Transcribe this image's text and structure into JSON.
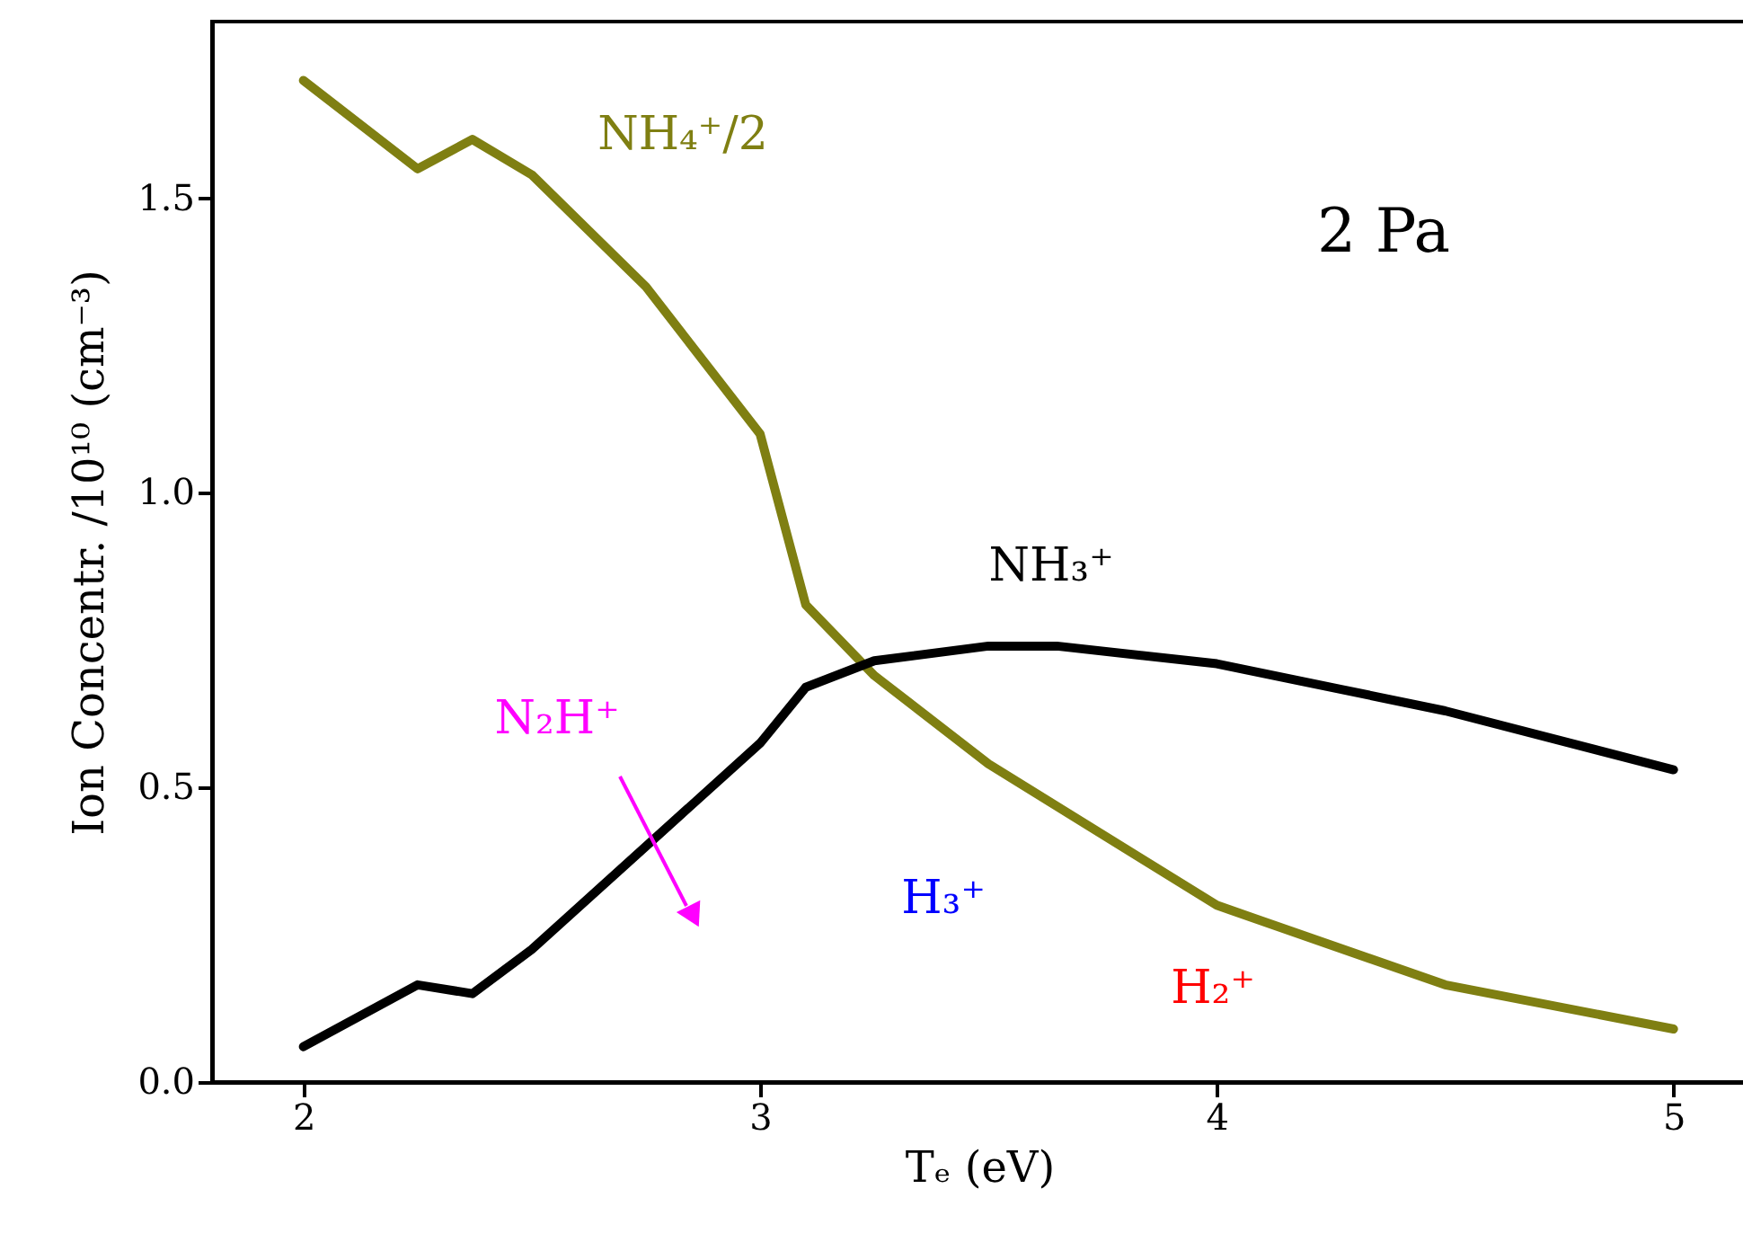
{
  "chart_data": {
    "type": "line",
    "xlabel": "Tₑ (eV)",
    "ylabel": "Ion Concentr. /10¹⁰ (cm⁻³)",
    "xlim": [
      1.8,
      5.16
    ],
    "ylim": [
      0,
      1.8
    ],
    "xticks": [
      2,
      3,
      4,
      5
    ],
    "yticks": [
      {
        "value": 0,
        "label": "0.0"
      },
      {
        "value": 0.5,
        "label": "0.5"
      },
      {
        "value": 1,
        "label": "1.0"
      },
      {
        "value": 1.5,
        "label": "1.5"
      }
    ],
    "series": [
      {
        "name": "NH₄⁺/2",
        "color": "#7f7f12",
        "x": [
          2,
          2.25,
          2.37,
          2.5,
          2.75,
          3.0,
          3.1,
          3.25,
          3.5,
          4.0,
          4.5,
          5.0
        ],
        "values": [
          1.7,
          1.55,
          1.6,
          1.54,
          1.35,
          1.1,
          0.81,
          0.69,
          0.54,
          0.3,
          0.165,
          0.09
        ]
      },
      {
        "name": "NH₃⁺",
        "color": "#000000",
        "x": [
          2,
          2.25,
          2.37,
          2.5,
          2.75,
          3.0,
          3.1,
          3.25,
          3.5,
          3.65,
          4.0,
          4.5,
          5.0
        ],
        "values": [
          0.06,
          0.165,
          0.15,
          0.225,
          0.4,
          0.575,
          0.67,
          0.715,
          0.74,
          0.74,
          0.71,
          0.63,
          0.53
        ]
      }
    ],
    "annotations": [
      "N₂H⁺",
      "H₃⁺",
      "H₂⁺",
      "2 Pa"
    ],
    "colors": [
      "#ff00ff",
      "#0000ff",
      "#ff0000",
      "#000000"
    ]
  }
}
